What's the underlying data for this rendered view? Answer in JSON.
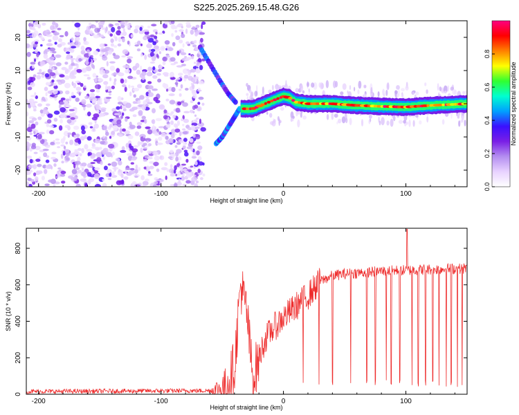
{
  "figure_title": "S225.2025.269.15.48.G26",
  "chart_data": [
    {
      "type": "heatmap",
      "title": "S225.2025.269.15.48.G26",
      "xlabel": "Height of straight line (km)",
      "ylabel": "Frequency (Hz)",
      "xlim": [
        -210,
        150
      ],
      "ylim": [
        -25,
        25
      ],
      "x_ticks": [
        -200,
        -100,
        0,
        100
      ],
      "x_tick_labels": [
        "-200",
        "-100",
        "0",
        "100"
      ],
      "y_ticks": [
        -20,
        -10,
        0,
        10,
        20
      ],
      "y_tick_labels": [
        "-20",
        "-10",
        "0",
        "10",
        "20"
      ],
      "colorbar": {
        "label": "Normalized spectral amplitude",
        "range": [
          0,
          1
        ],
        "ticks": [
          0.0,
          0.2,
          0.4,
          0.6,
          0.8
        ],
        "tick_labels": [
          "0.0",
          "0.2",
          "0.4",
          "0.6",
          "0.8"
        ],
        "colors": [
          "#ffffff",
          "#e8d2ff",
          "#b48ef0",
          "#7a1fe6",
          "#3a10ff",
          "#00a0ff",
          "#00ffd0",
          "#30ff30",
          "#ffff00",
          "#ff8000",
          "#ff0000",
          "#ff0080"
        ]
      },
      "features": {
        "noise_region_x": [
          -210,
          -65
        ],
        "noise_amplitude": 0.35,
        "upper_arm": [
          [
            -68,
            17
          ],
          [
            -60,
            12
          ],
          [
            -52,
            7
          ],
          [
            -45,
            3
          ],
          [
            -38,
            0
          ]
        ],
        "lower_arm": [
          [
            -55,
            -12
          ],
          [
            -50,
            -10
          ],
          [
            -45,
            -7
          ],
          [
            -40,
            -4
          ],
          [
            -35,
            -1
          ]
        ],
        "ridge": [
          [
            -35,
            -1.5
          ],
          [
            -25,
            -1.5
          ],
          [
            -15,
            0
          ],
          [
            -5,
            1.5
          ],
          [
            0,
            2.2
          ],
          [
            5,
            1.8
          ],
          [
            10,
            0.5
          ],
          [
            20,
            0
          ],
          [
            40,
            0
          ],
          [
            60,
            -0.5
          ],
          [
            80,
            -0.8
          ],
          [
            100,
            -1
          ],
          [
            120,
            -0.5
          ],
          [
            150,
            0
          ]
        ],
        "ridge_peak_amplitude": 1.0
      }
    },
    {
      "type": "line",
      "xlabel": "Height of straight line (km)",
      "ylabel": "SNR (10 * v/v)",
      "xlim": [
        -210,
        150
      ],
      "ylim": [
        0,
        910
      ],
      "x_ticks": [
        -200,
        -100,
        0,
        100
      ],
      "x_tick_labels": [
        "-200",
        "-100",
        "0",
        "100"
      ],
      "y_ticks": [
        0,
        200,
        400,
        600,
        800
      ],
      "y_tick_labels": [
        "0",
        "200",
        "400",
        "600",
        "800"
      ],
      "series": [
        {
          "name": "SNR",
          "color": "#ee2c2c",
          "x": [
            -210,
            -60,
            -48,
            -40,
            -35,
            -30,
            -25,
            -20,
            -15,
            -10,
            0,
            10,
            20,
            30,
            40,
            50,
            60,
            80,
            100,
            120,
            150
          ],
          "values": [
            15,
            20,
            35,
            150,
            600,
            450,
            80,
            200,
            300,
            350,
            420,
            480,
            540,
            620,
            650,
            660,
            665,
            675,
            680,
            685,
            690
          ],
          "noise_band": 25,
          "spike": {
            "x": 101,
            "y": 905
          },
          "dropouts_x": [
            16,
            29,
            40,
            55,
            68,
            75,
            84,
            88,
            95,
            105,
            110,
            116,
            122,
            127,
            133,
            137,
            142,
            146
          ]
        }
      ]
    }
  ]
}
